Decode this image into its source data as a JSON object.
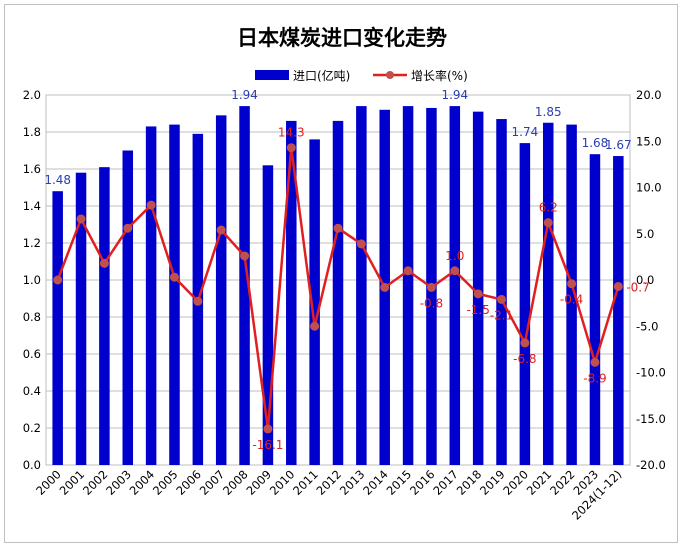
{
  "chart_data": {
    "type": "bar",
    "title": "日本煤炭进口变化走势",
    "categories": [
      "2000",
      "2001",
      "2002",
      "2003",
      "2004",
      "2005",
      "2006",
      "2007",
      "2008",
      "2009",
      "2010",
      "2011",
      "2012",
      "2013",
      "2014",
      "2015",
      "2016",
      "2017",
      "2018",
      "2019",
      "2020",
      "2021",
      "2022",
      "2023",
      "2024(1-12)"
    ],
    "series": [
      {
        "name": "进口(亿吨)",
        "type": "bar",
        "axis": "left",
        "color": "#0000cc",
        "values": [
          1.48,
          1.58,
          1.61,
          1.7,
          1.83,
          1.84,
          1.79,
          1.89,
          1.94,
          1.62,
          1.86,
          1.76,
          1.86,
          1.94,
          1.92,
          1.94,
          1.93,
          1.94,
          1.91,
          1.87,
          1.74,
          1.85,
          1.84,
          1.68,
          1.67
        ]
      },
      {
        "name": "增长率(%)",
        "type": "line",
        "axis": "right",
        "color": "#e02020",
        "values": [
          0.0,
          6.6,
          1.8,
          5.6,
          8.1,
          0.3,
          -2.3,
          5.4,
          2.6,
          -16.1,
          14.3,
          -5.0,
          5.6,
          3.9,
          -0.8,
          1.0,
          -0.8,
          1.0,
          -1.5,
          -2.1,
          -6.8,
          6.2,
          -0.4,
          -8.9,
          -0.7
        ]
      }
    ],
    "bar_labels": [
      {
        "index": 0,
        "text": "1.48"
      },
      {
        "index": 8,
        "text": "1.94"
      },
      {
        "index": 17,
        "text": "1.94"
      },
      {
        "index": 20,
        "text": "1.74"
      },
      {
        "index": 21,
        "text": "1.85"
      },
      {
        "index": 23,
        "text": "1.68"
      },
      {
        "index": 24,
        "text": "1.67"
      }
    ],
    "line_labels": [
      {
        "index": 9,
        "text": "-16.1",
        "pos": "below"
      },
      {
        "index": 10,
        "text": "14.3",
        "pos": "above"
      },
      {
        "index": 16,
        "text": "-0.8",
        "pos": "below"
      },
      {
        "index": 17,
        "text": "1.0",
        "pos": "above"
      },
      {
        "index": 18,
        "text": "-1.5",
        "pos": "below"
      },
      {
        "index": 19,
        "text": "-2.1",
        "pos": "below"
      },
      {
        "index": 20,
        "text": "-6.8",
        "pos": "below"
      },
      {
        "index": 21,
        "text": "6.2",
        "pos": "above"
      },
      {
        "index": 22,
        "text": "-0.4",
        "pos": "below"
      },
      {
        "index": 23,
        "text": "-8.9",
        "pos": "below"
      },
      {
        "index": 24,
        "text": "-0.7",
        "pos": "right"
      }
    ],
    "y_left": {
      "min": 0,
      "max": 2.0,
      "step": 0.2,
      "ticks": [
        "0.0",
        "0.2",
        "0.4",
        "0.6",
        "0.8",
        "1.0",
        "1.2",
        "1.4",
        "1.6",
        "1.8",
        "2.0"
      ]
    },
    "y_right": {
      "min": -20,
      "max": 20,
      "step": 5,
      "ticks": [
        "-20.0",
        "-15.0",
        "-10.0",
        "-5.0",
        "0.0",
        "5.0",
        "10.0",
        "15.0",
        "20.0"
      ]
    },
    "grid": true,
    "legend": "top-center"
  }
}
